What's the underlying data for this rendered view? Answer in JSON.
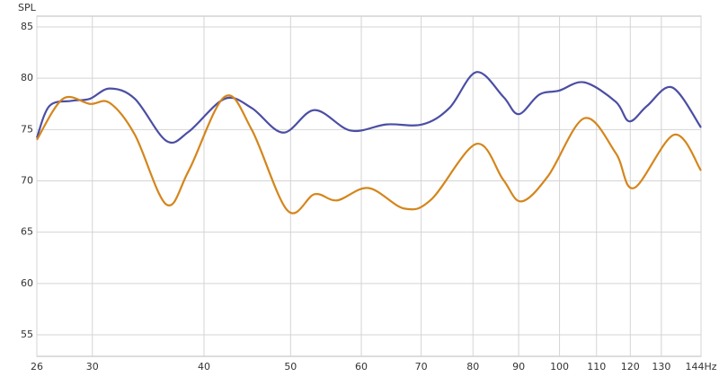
{
  "chart_data": {
    "type": "line",
    "y_label": "SPL",
    "x_scale": "log",
    "grid": true,
    "xlim": [
      26,
      144
    ],
    "ylim": [
      52.9,
      86.05
    ],
    "xticks": [
      26,
      30,
      40,
      50,
      60,
      70,
      80,
      90,
      100,
      110,
      120,
      130,
      {
        "value": 144,
        "label": "144Hz"
      }
    ],
    "yticks": [
      55,
      60,
      65,
      70,
      75,
      80,
      85
    ],
    "series": [
      {
        "color": "#4b4ea3",
        "x": [
          26,
          26.86,
          28.46,
          29.81,
          31.37,
          33.47,
          36.3,
          38.46,
          42.19,
          45.23,
          49.05,
          53.19,
          58.35,
          64.02,
          70.23,
          75.29,
          80.7,
          86.5,
          90.0,
          94.9,
          99.9,
          106.6,
          115.6,
          119.7,
          125.3,
          133.7,
          144
        ],
        "values": [
          74.2,
          77.3,
          77.8,
          78.0,
          79.0,
          78.0,
          73.9,
          74.8,
          78.0,
          77.1,
          74.7,
          76.9,
          74.9,
          75.5,
          75.5,
          77.1,
          80.6,
          78.2,
          76.5,
          78.4,
          78.8,
          79.6,
          77.7,
          75.8,
          77.3,
          79.1,
          75.2
        ]
      },
      {
        "color": "#d4861c",
        "x": [
          26,
          27.81,
          29.81,
          31.37,
          33.47,
          36.3,
          38.46,
          42.19,
          45.23,
          49.62,
          53.19,
          56.36,
          61.13,
          67.05,
          71.88,
          80.7,
          86.5,
          90.62,
          97.14,
          106.6,
          115.6,
          121.1,
          134.4,
          144
        ],
        "values": [
          74.0,
          78.0,
          77.5,
          77.6,
          74.5,
          67.7,
          71.0,
          78.2,
          75.0,
          67.1,
          68.7,
          68.1,
          69.3,
          67.3,
          68.2,
          73.6,
          70.1,
          68.0,
          70.5,
          76.1,
          72.7,
          69.3,
          74.5,
          71.0
        ]
      }
    ]
  }
}
